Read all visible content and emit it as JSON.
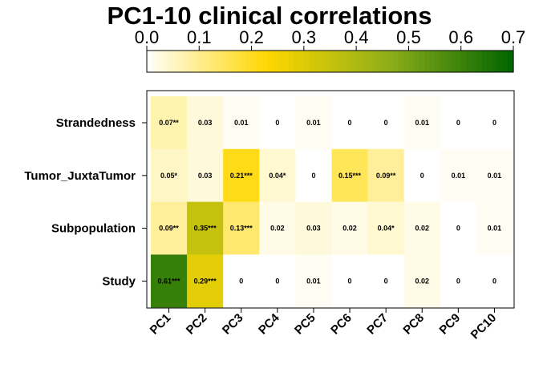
{
  "chart_data": {
    "type": "heatmap",
    "title": "PC1-10 clinical correlations",
    "colorbar": {
      "ticks": [
        "0.0",
        "0.1",
        "0.2",
        "0.3",
        "0.4",
        "0.5",
        "0.6",
        "0.7"
      ],
      "range": [
        0,
        0.7
      ],
      "colors": [
        "#ffffff",
        "#fffbe5",
        "#ffd700",
        "#8fae1a",
        "#006400"
      ]
    },
    "columns": [
      "PC1",
      "PC2",
      "PC3",
      "PC4",
      "PC5",
      "PC6",
      "PC7",
      "PC8",
      "PC9",
      "PC10"
    ],
    "rows": [
      "Strandedness",
      "Tumor_JuxtaTumor",
      "Subpopulation",
      "Study"
    ],
    "values": [
      [
        0.07,
        0.03,
        0.01,
        0,
        0.01,
        0,
        0,
        0.01,
        0,
        0
      ],
      [
        0.05,
        0.03,
        0.21,
        0.04,
        0,
        0.15,
        0.09,
        0,
        0.01,
        0.01
      ],
      [
        0.09,
        0.35,
        0.13,
        0.02,
        0.03,
        0.02,
        0.04,
        0.02,
        0,
        0.01
      ],
      [
        0.61,
        0.29,
        0,
        0,
        0.01,
        0,
        0,
        0.02,
        0,
        0
      ]
    ],
    "labels": [
      [
        "0.07**",
        "0.03",
        "0.01",
        "0",
        "0.01",
        "0",
        "0",
        "0.01",
        "0",
        "0"
      ],
      [
        "0.05*",
        "0.03",
        "0.21***",
        "0.04*",
        "0",
        "0.15***",
        "0.09**",
        "0",
        "0.01",
        "0.01"
      ],
      [
        "0.09**",
        "0.35***",
        "0.13***",
        "0.02",
        "0.03",
        "0.02",
        "0.04*",
        "0.02",
        "0",
        "0.01"
      ],
      [
        "0.61***",
        "0.29***",
        "0",
        "0",
        "0.01",
        "0",
        "0",
        "0.02",
        "0",
        "0"
      ]
    ]
  }
}
